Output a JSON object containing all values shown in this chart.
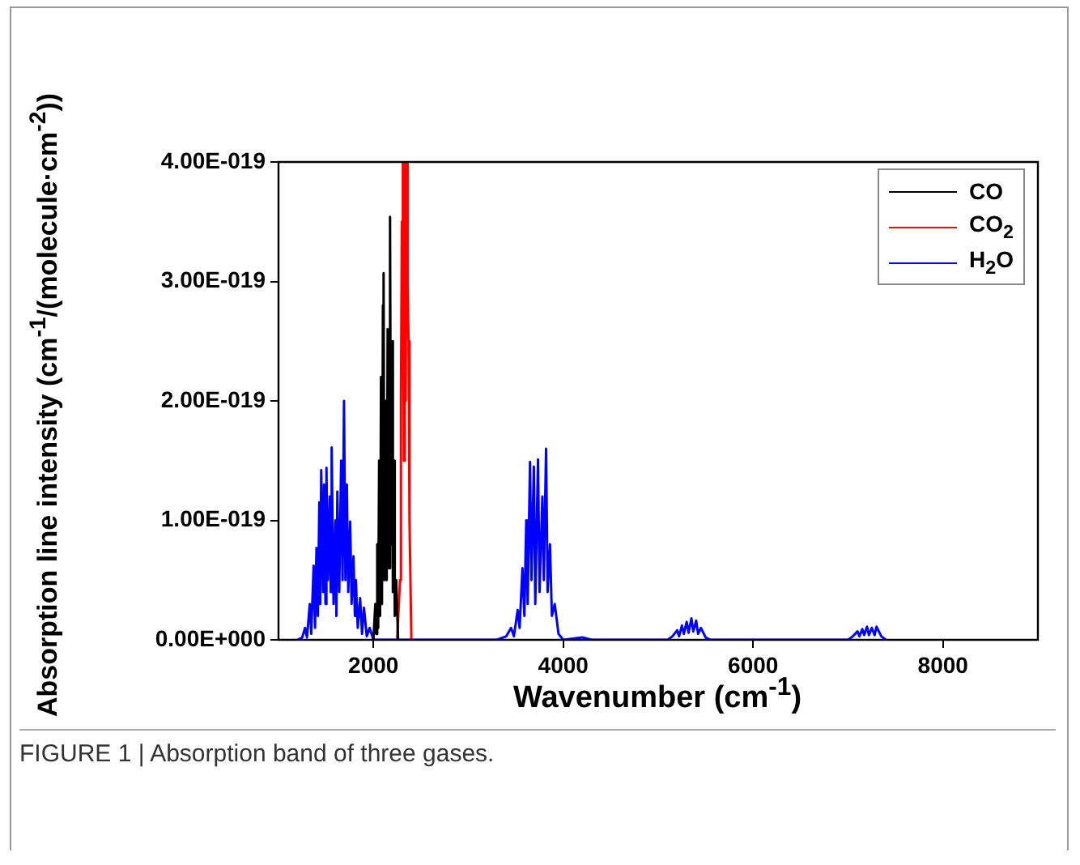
{
  "chart_data": {
    "type": "line",
    "xlabel": "Wavenumber (cm$^{-1}$)",
    "ylabel": "Absorption line intensity (cm$^{-1}$/(molecule·cm$^{-2}$))",
    "annotations": [
      "FIGURE 1 | Absorption band of three gases."
    ],
    "xlim": [
      1000,
      9000
    ],
    "xticks": [
      2000,
      4000,
      6000,
      8000
    ],
    "ylim": [
      0,
      4e-19
    ],
    "yticks": [
      {
        "value": 0,
        "label": "0.00E+000"
      },
      {
        "value": 1e-19,
        "label": "1.00E-019"
      },
      {
        "value": 2e-19,
        "label": "2.00E-019"
      },
      {
        "value": 3e-19,
        "label": "3.00E-019"
      },
      {
        "value": 4e-19,
        "label": "4.00E-019"
      }
    ],
    "grid": false,
    "legend": "top right",
    "marker": "none",
    "line_style": "solid",
    "series": [
      {
        "name": "CO",
        "color": "#000000",
        "x": [
          2000,
          2020,
          2030,
          2040,
          2050,
          2060,
          2070,
          2080,
          2090,
          2100,
          2107,
          2115,
          2130,
          2140,
          2150,
          2160,
          2175,
          2185,
          2195,
          2205,
          2215,
          2225,
          2240,
          2260
        ],
        "values": [
          0,
          3e-20,
          5e-21,
          8e-20,
          1e-20,
          1.5e-19,
          2e-20,
          2.2e-19,
          3e-20,
          2.8e-19,
          3.07e-19,
          5e-20,
          2e-19,
          5e-20,
          2.6e-19,
          6e-20,
          3.54e-19,
          8e-20,
          2.5e-19,
          4e-20,
          1.5e-19,
          2e-20,
          5e-20,
          0
        ]
      },
      {
        "name": "CO$_{2}$",
        "color": "#ff0000",
        "x": [
          2250,
          2280,
          2290,
          2300,
          2310,
          2320,
          2330,
          2340,
          2350,
          2360,
          2370,
          2380,
          2400
        ],
        "values": [
          0,
          5e-20,
          2e-19,
          3.5e-19,
          4e-19,
          1.5e-19,
          4e-19,
          2e-19,
          4e-19,
          3e-19,
          2.5e-19,
          1e-19,
          0
        ]
      },
      {
        "name": "H$_{2}$O",
        "color": "#0000ff",
        "x": [
          1200,
          1250,
          1280,
          1300,
          1330,
          1345,
          1370,
          1385,
          1400,
          1415,
          1430,
          1440,
          1450,
          1470,
          1480,
          1495,
          1505,
          1520,
          1540,
          1550,
          1560,
          1580,
          1600,
          1610,
          1620,
          1640,
          1660,
          1675,
          1690,
          1705,
          1720,
          1735,
          1755,
          1770,
          1790,
          1805,
          1815,
          1835,
          1860,
          1880,
          1900,
          1930,
          1960,
          2000,
          3300,
          3400,
          3450,
          3480,
          3520,
          3540,
          3570,
          3590,
          3610,
          3625,
          3650,
          3665,
          3690,
          3705,
          3734,
          3750,
          3780,
          3795,
          3819,
          3835,
          3860,
          3880,
          3910,
          3950,
          4000,
          4200,
          4300,
          5100,
          5150,
          5200,
          5220,
          5250,
          5270,
          5300,
          5320,
          5350,
          5370,
          5400,
          5420,
          5450,
          5500,
          5550,
          7000,
          7050,
          7100,
          7120,
          7150,
          7170,
          7200,
          7220,
          7250,
          7280,
          7300,
          7350,
          7400
        ],
        "values": [
          0,
          2e-21,
          1e-20,
          2e-21,
          3e-20,
          5e-21,
          6.2e-20,
          1e-20,
          7.7e-20,
          2e-20,
          1.15e-19,
          3e-20,
          1.42e-19,
          4e-20,
          1.3e-19,
          3e-20,
          1.44e-19,
          5e-20,
          1.2e-19,
          4e-20,
          1.61e-19,
          3e-20,
          1e-19,
          2e-20,
          1.24e-19,
          4e-20,
          1.5e-19,
          5e-20,
          2e-19,
          5e-20,
          1.3e-19,
          4e-20,
          9.9e-20,
          3e-20,
          7e-20,
          2e-20,
          5e-20,
          1e-20,
          3.5e-20,
          5e-21,
          2.7e-20,
          3e-21,
          1e-20,
          0,
          0,
          3e-21,
          1e-20,
          3e-21,
          2.5e-20,
          1e-20,
          6e-20,
          2e-20,
          1e-19,
          3e-20,
          1.49e-19,
          5e-20,
          1.45e-19,
          3e-20,
          1.51e-19,
          4e-20,
          1.2e-19,
          5e-20,
          1.6e-19,
          4e-20,
          8e-20,
          2e-20,
          3e-20,
          5e-21,
          0,
          2e-21,
          0,
          0,
          3e-21,
          8e-21,
          3e-21,
          1.2e-20,
          5e-21,
          1.5e-20,
          6e-21,
          1.8e-20,
          7e-21,
          1.6e-20,
          5e-21,
          1e-20,
          2e-21,
          0,
          0,
          3e-21,
          7e-21,
          3e-21,
          9e-21,
          4e-21,
          1.1e-20,
          4e-21,
          1e-20,
          4e-21,
          1.1e-20,
          3e-21,
          0
        ]
      }
    ]
  }
}
